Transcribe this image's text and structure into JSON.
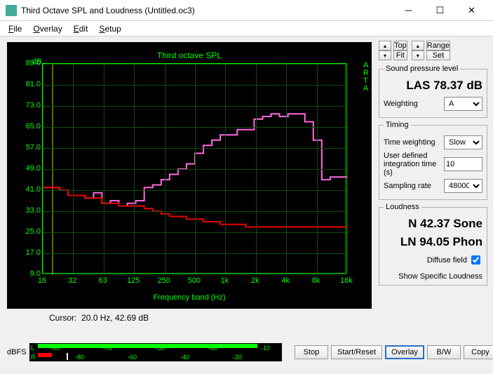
{
  "titlebar": {
    "text": "Third Octave SPL and Loudness (Untitled.oc3)"
  },
  "menu": {
    "file": "File",
    "overlay": "Overlay",
    "edit": "Edit",
    "setup": "Setup"
  },
  "chart": {
    "type": "step-line",
    "title": "Third octave SPL",
    "y_unit": "dB",
    "x_unit": "Frequency band (Hz)",
    "watermark": "A\nR\nT\nA",
    "background_color": "#000000",
    "grid_color": "#0d4d0d",
    "axis_color": "#00ff00",
    "ylim": [
      9.0,
      89.0
    ],
    "ytick_step": 8.0,
    "y_labels": [
      "89.0",
      "81.0",
      "73.0",
      "65.0",
      "57.0",
      "49.0",
      "41.0",
      "33.0",
      "25.0",
      "17.0",
      "9.0"
    ],
    "x_labels": [
      "16",
      "32",
      "63",
      "125",
      "250",
      "500",
      "1k",
      "2k",
      "4k",
      "8k",
      "16k"
    ],
    "series": [
      {
        "name": "pink",
        "color": "#ff69e1",
        "width": 2,
        "values": [
          42,
          42,
          41,
          39,
          39,
          38,
          40,
          36,
          37,
          35,
          36,
          37,
          42,
          43,
          45,
          47,
          49,
          51,
          55,
          58,
          60,
          62,
          62,
          64,
          64,
          68,
          69,
          70,
          69,
          70,
          70,
          67,
          60,
          45,
          46,
          46
        ]
      },
      {
        "name": "red",
        "color": "#e60000",
        "width": 2,
        "values": [
          42,
          42,
          41,
          39,
          39,
          38,
          38,
          36,
          36,
          35,
          35,
          35,
          34,
          33,
          32,
          31,
          31,
          30,
          30,
          29,
          29,
          28,
          28,
          28,
          27,
          27,
          27,
          27,
          27,
          27,
          27,
          27,
          27,
          27,
          27,
          27
        ]
      }
    ],
    "x_bands": [
      "12.5",
      "16",
      "20",
      "25",
      "31.5",
      "40",
      "50",
      "63",
      "80",
      "100",
      "125",
      "160",
      "200",
      "250",
      "315",
      "400",
      "500",
      "630",
      "800",
      "1000",
      "1250",
      "1600",
      "2000",
      "2500",
      "3150",
      "4000",
      "5000",
      "6300",
      "8000",
      "10000",
      "12500",
      "16000",
      "20000",
      "25000",
      "31500",
      "40000"
    ]
  },
  "cursor": {
    "label": "Cursor:",
    "freq": "20.0 Hz,",
    "db": "42.69 dB"
  },
  "top_buttons": {
    "top": "Top",
    "fit": "Fit",
    "range": "Range",
    "set": "Set"
  },
  "spl_group": {
    "legend": "Sound pressure level",
    "reading": "LAS 78.37 dB",
    "weighting_label": "Weighting",
    "weighting_value": "A"
  },
  "timing_group": {
    "legend": "Timing",
    "time_weighting_label": "Time weighting",
    "time_weighting_value": "Slow",
    "integration_label": "User defined integration time (s)",
    "integration_value": "10",
    "sampling_label": "Sampling rate",
    "sampling_value": "48000"
  },
  "loudness_group": {
    "legend": "Loudness",
    "n_reading": "N 42.37 Sone",
    "ln_reading": "LN 94.05 Phon",
    "diffuse_label": "Diffuse field",
    "diffuse_checked": true,
    "show_label": "Show Specific Loudness"
  },
  "dbfs": {
    "label": "dBFS",
    "l_label": "L",
    "r_label": "R",
    "l_ticks": [
      "-90",
      "-70",
      "-50",
      "-30",
      "-10"
    ],
    "r_ticks": [
      "-80",
      "-60",
      "-40",
      "-20"
    ],
    "l_bar_color": "#00ff00",
    "r_bar_color": "#ff0000",
    "l_value_pct": 92,
    "r_value_pct": 6,
    "r_marker_pct": 12
  },
  "bottom_buttons": {
    "stop": "Stop",
    "start": "Start/Reset",
    "overlay": "Overlay",
    "bw": "B/W",
    "copy": "Copy"
  }
}
